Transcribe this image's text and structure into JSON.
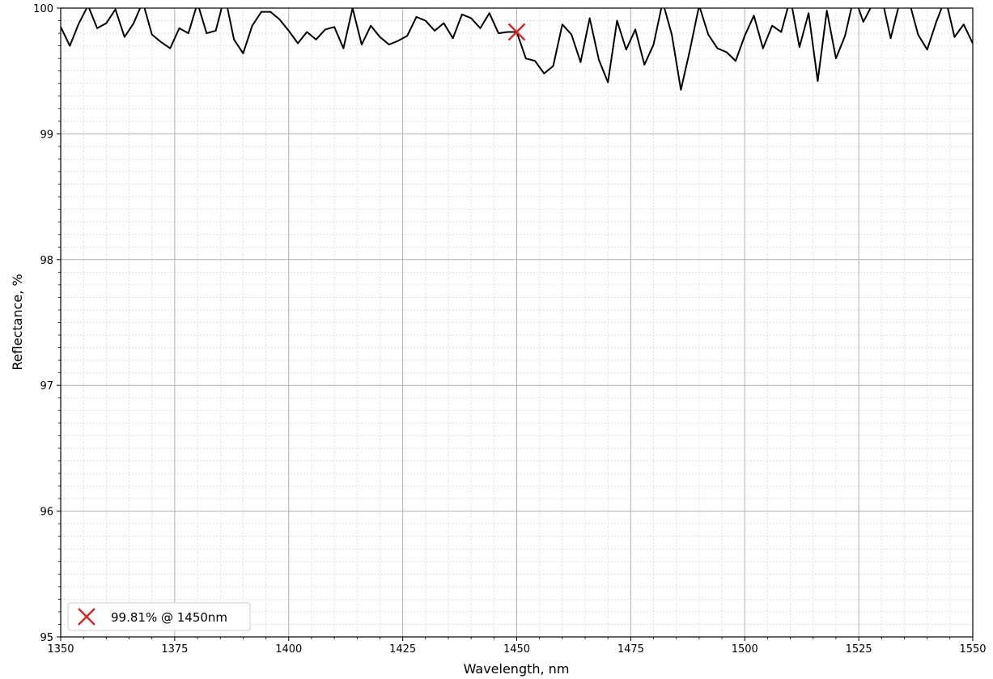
{
  "chart_data": {
    "type": "line",
    "title": "",
    "xlabel": "Wavelength, nm",
    "ylabel": "Reflectance, %",
    "xlim": [
      1350,
      1550
    ],
    "ylim": [
      95,
      100
    ],
    "xticks": [
      1350,
      1375,
      1400,
      1425,
      1450,
      1475,
      1500,
      1525,
      1550
    ],
    "yticks": [
      95,
      96,
      97,
      98,
      99,
      100
    ],
    "xminor_step": 5,
    "yminor_step": 0.1,
    "grid": true,
    "legend_position": "bottom-left",
    "series": [
      {
        "color": "#000000",
        "x": [
          1350,
          1352,
          1354,
          1356,
          1358,
          1360,
          1362,
          1364,
          1366,
          1368,
          1370,
          1372,
          1374,
          1376,
          1378,
          1380,
          1382,
          1384,
          1386,
          1388,
          1390,
          1392,
          1394,
          1396,
          1398,
          1400,
          1402,
          1404,
          1406,
          1408,
          1410,
          1412,
          1414,
          1416,
          1418,
          1420,
          1422,
          1424,
          1426,
          1428,
          1430,
          1432,
          1434,
          1436,
          1438,
          1440,
          1442,
          1444,
          1446,
          1448,
          1450,
          1452,
          1454,
          1456,
          1458,
          1460,
          1462,
          1464,
          1466,
          1468,
          1470,
          1472,
          1474,
          1476,
          1478,
          1480,
          1482,
          1484,
          1486,
          1488,
          1490,
          1492,
          1494,
          1496,
          1498,
          1500,
          1502,
          1504,
          1506,
          1508,
          1510,
          1512,
          1514,
          1516,
          1518,
          1520,
          1522,
          1524,
          1526,
          1528,
          1530,
          1532,
          1534,
          1536,
          1538,
          1540,
          1542,
          1544,
          1546,
          1548,
          1550
        ],
        "y": [
          99.85,
          99.7,
          99.88,
          100.02,
          99.84,
          99.88,
          99.99,
          99.77,
          99.88,
          100.05,
          99.79,
          99.73,
          99.68,
          99.84,
          99.8,
          100.04,
          99.8,
          99.82,
          100.1,
          99.75,
          99.64,
          99.86,
          99.97,
          99.97,
          99.91,
          99.82,
          99.72,
          99.81,
          99.75,
          99.83,
          99.85,
          99.68,
          100.0,
          99.71,
          99.86,
          99.77,
          99.71,
          99.74,
          99.78,
          99.93,
          99.9,
          99.82,
          99.88,
          99.76,
          99.95,
          99.92,
          99.84,
          99.96,
          99.8,
          99.81,
          99.81,
          99.6,
          99.58,
          99.48,
          99.54,
          99.87,
          99.79,
          99.57,
          99.92,
          99.59,
          99.41,
          99.9,
          99.67,
          99.83,
          99.55,
          99.71,
          100.05,
          99.79,
          99.35,
          99.67,
          100.02,
          99.79,
          99.68,
          99.65,
          99.58,
          99.78,
          99.94,
          99.68,
          99.86,
          99.81,
          100.08,
          99.69,
          99.96,
          99.42,
          99.98,
          99.6,
          99.78,
          100.1,
          99.89,
          100.03,
          100.09,
          99.76,
          100.05,
          100.06,
          99.79,
          99.67,
          99.89,
          100.08,
          99.77,
          99.87,
          99.72
        ]
      }
    ],
    "marker": {
      "x": 1450,
      "y": 99.81,
      "color": "#d62728",
      "label": "99.81% @ 1450nm"
    }
  }
}
